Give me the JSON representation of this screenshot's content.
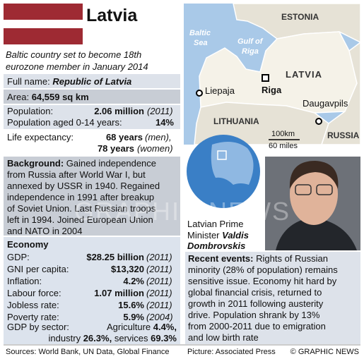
{
  "header": {
    "title": "Latvia",
    "subtitle": [
      "Baltic country set to become 18th",
      "eurozone member in January 2014"
    ]
  },
  "facts": {
    "full_name": {
      "label": "Full name:",
      "value": "Republic of Latvia"
    },
    "area": {
      "label": "Area:",
      "value": "64,559 sq km"
    },
    "population": {
      "label": "Population:",
      "value": "2.06 million",
      "note": "(2011)"
    },
    "population_0_14": {
      "label": "Population aged 0-14 years:",
      "value": "14%"
    },
    "life_expectancy": {
      "label": "Life expectancy:",
      "lines": [
        {
          "value": "68 years",
          "note": "(men),"
        },
        {
          "value": "78 years",
          "note": "(women)"
        }
      ]
    }
  },
  "background": {
    "label": "Background:",
    "lines": [
      "Gained independence",
      "from Russia after World War I, but",
      "annexed by USSR in 1940. Regained",
      "independence in 1991 after breakup",
      "of Soviet Union. Last Russian troops",
      "left in 1994. Joined European Union",
      "and NATO in 2004"
    ]
  },
  "economy": {
    "title": "Economy",
    "rows": [
      {
        "label": "GDP:",
        "value": "$28.25 billion",
        "note": "(2011)"
      },
      {
        "label": "GNI per capita:",
        "value": "$13,320",
        "note": "(2011)"
      },
      {
        "label": "Inflation:",
        "value": "4.2%",
        "note": "(2011)"
      },
      {
        "label": "Labour force:",
        "value": "1.07 million",
        "note": "(2011)"
      },
      {
        "label": "Jobless rate:",
        "value": "15.6%",
        "note": "(2011)"
      },
      {
        "label": "Poverty rate:",
        "value": "5.9%",
        "note": "(2004)"
      }
    ],
    "sectors": {
      "label": "GDP by sector:",
      "parts": [
        {
          "name": "Agriculture",
          "value": "4.4%,"
        },
        {
          "name": "industry",
          "value": "26.3%,"
        },
        {
          "name": "services",
          "value": "69.3%"
        }
      ]
    }
  },
  "map": {
    "labels": {
      "estonia": "ESTONIA",
      "baltic_sea": [
        "Baltic",
        "Sea"
      ],
      "gulf": [
        "Gulf of",
        "Riga"
      ],
      "latvia": "LATVIA",
      "liepaja": "Liepaja",
      "riga": "Riga",
      "daugavpils": "Daugavpils",
      "lithuania": "LITHUANIA",
      "russia": "RUSSIA"
    },
    "scale": [
      "100km",
      "60 miles"
    ]
  },
  "photo": {
    "caption": [
      "Latvian Prime",
      "Minister"
    ],
    "name": [
      "Valdis",
      "Dombrovskis"
    ]
  },
  "recent_events": {
    "label": "Recent events:",
    "lines": [
      "Rights of Russian",
      "minority (28% of population) remains",
      "sensitive issue. Economy hit hard by",
      "global financial crisis, returned to",
      "growth in 2011 following austerity",
      "drive. Population shrank by 13%",
      "from 2000-2011 due to emigration",
      "and low birth rate"
    ]
  },
  "footer": {
    "sources": "Sources: World Bank, UN Data, Global Finance",
    "picture": "Picture: Associated Press",
    "copyright": "© GRAPHIC NEWS"
  },
  "watermark": "GRAPHIC NEWS"
}
